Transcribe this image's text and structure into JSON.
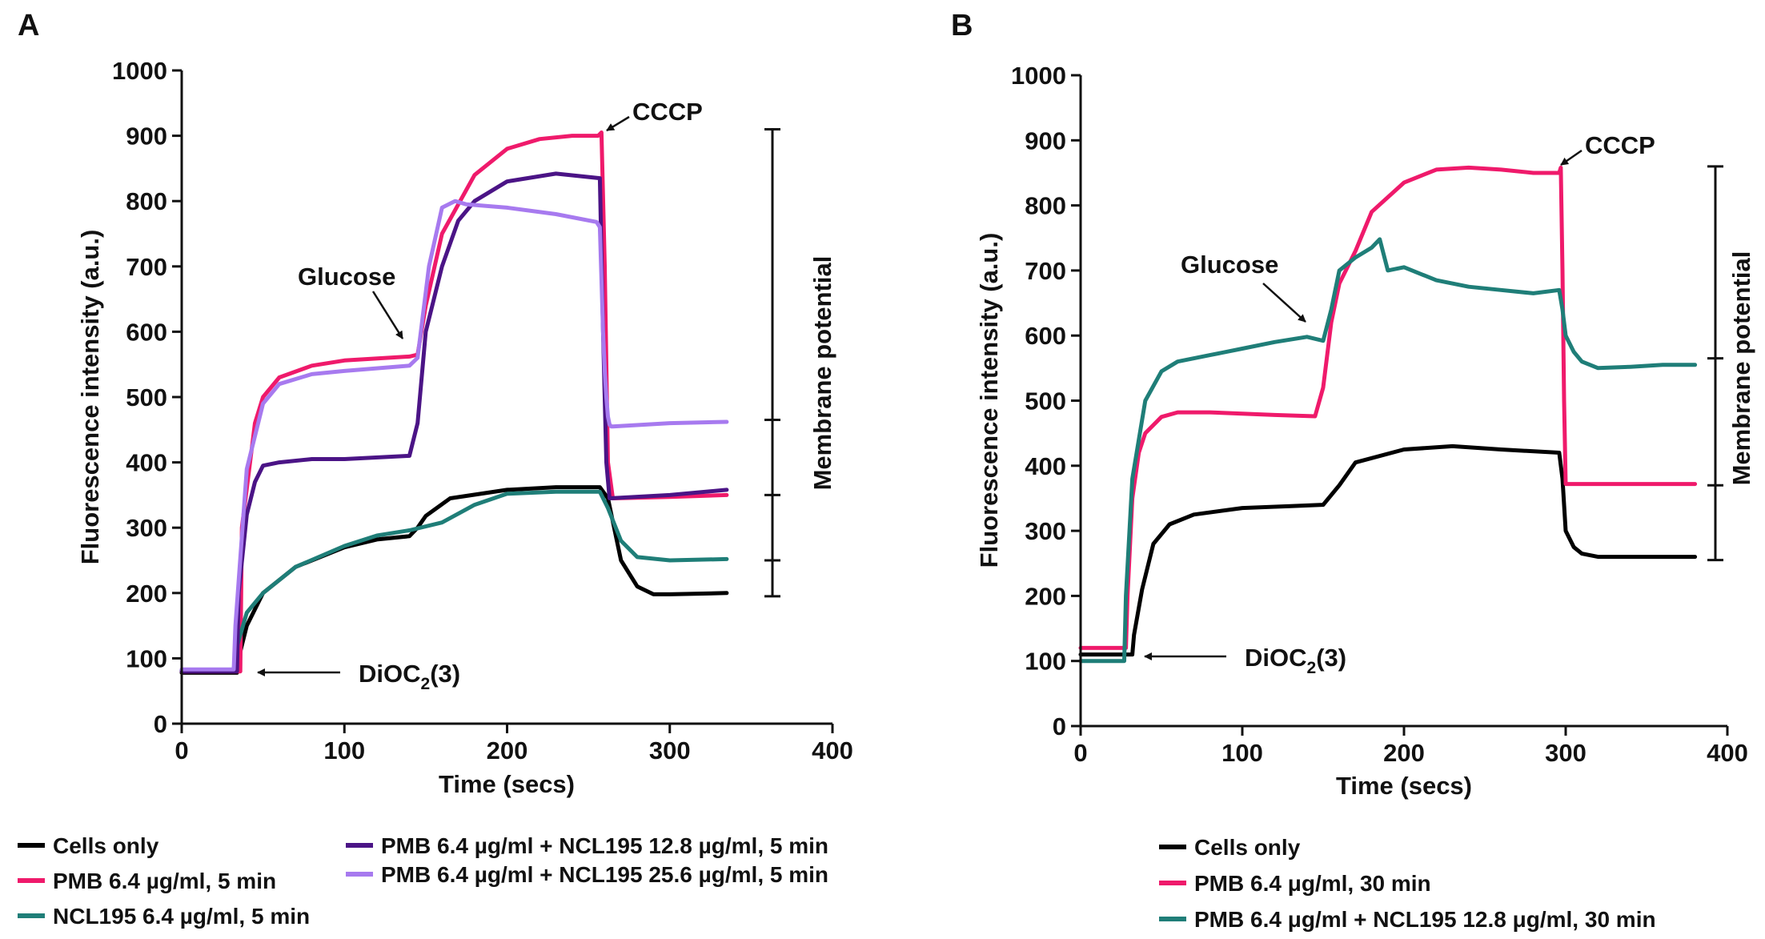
{
  "panels": [
    {
      "label": "A",
      "annotations": {
        "glucose": "Glucose",
        "cccp": "CCCP",
        "dioc_main": "DiOC",
        "dioc_sub": "2",
        "dioc_tail": "(3)",
        "side": "Membrane potential"
      },
      "legend": [
        {
          "label": "Cells only",
          "color": "#000000"
        },
        {
          "label": "PMB 6.4 µg/ml, 5 min",
          "color": "#ef1a6b"
        },
        {
          "label": "NCL195 6.4 µg/ml, 5 min",
          "color": "#1f7e78"
        },
        {
          "label": "PMB 6.4 µg/ml + NCL195 12.8 µg/ml, 5 min",
          "color": "#4b1486"
        },
        {
          "label": "PMB 6.4 µg/ml + NCL195 25.6 µg/ml, 5 min",
          "color": "#a77aef"
        }
      ]
    },
    {
      "label": "B",
      "annotations": {
        "glucose": "Glucose",
        "cccp": "CCCP",
        "dioc_main": "DiOC",
        "dioc_sub": "2",
        "dioc_tail": "(3)",
        "side": "Membrane potential"
      },
      "legend": [
        {
          "label": "Cells only",
          "color": "#000000"
        },
        {
          "label": "PMB 6.4 μg/ml, 30 min",
          "color": "#ef1a6b"
        },
        {
          "label": "PMB 6.4 μg/ml + NCL195 12.8 μg/ml, 30 min",
          "color": "#1f7e78"
        }
      ]
    }
  ],
  "chart_data": [
    {
      "type": "line",
      "title": "",
      "xlabel": "Time (secs)",
      "ylabel": "Fluorescence intensity (a.u.)",
      "xlim": [
        0,
        400
      ],
      "ylim": [
        0,
        1000
      ],
      "xticks": [
        0,
        100,
        200,
        300,
        400
      ],
      "yticks": [
        0,
        100,
        200,
        300,
        400,
        500,
        600,
        700,
        800,
        900,
        1000
      ],
      "bracket_values": [
        910,
        465,
        350,
        250,
        195
      ],
      "series": [
        {
          "name": "Cells only",
          "color": "#000000",
          "x": [
            0,
            34,
            35,
            40,
            50,
            70,
            100,
            120,
            140,
            145,
            150,
            165,
            200,
            230,
            257,
            262,
            270,
            280,
            290,
            300,
            335
          ],
          "y": [
            78,
            78,
            100,
            150,
            200,
            240,
            270,
            282,
            287,
            300,
            318,
            345,
            358,
            362,
            362,
            345,
            250,
            210,
            198,
            198,
            200
          ]
        },
        {
          "name": "PMB 6.4 µg/ml, 5 min",
          "color": "#ef1a6b",
          "x": [
            0,
            36,
            37,
            45,
            50,
            60,
            80,
            100,
            140,
            145,
            150,
            160,
            180,
            200,
            220,
            240,
            256,
            258,
            260,
            262,
            265,
            300,
            335
          ],
          "y": [
            80,
            80,
            300,
            460,
            500,
            530,
            548,
            556,
            562,
            565,
            640,
            750,
            840,
            880,
            895,
            900,
            900,
            905,
            700,
            400,
            345,
            347,
            350
          ]
        },
        {
          "name": "NCL195 6.4 µg/ml, 5 min",
          "color": "#1f7e78",
          "x": [
            0,
            32,
            33,
            40,
            50,
            70,
            100,
            120,
            140,
            160,
            180,
            200,
            230,
            257,
            262,
            270,
            280,
            300,
            335
          ],
          "y": [
            82,
            82,
            110,
            170,
            200,
            240,
            272,
            288,
            296,
            308,
            335,
            352,
            355,
            355,
            330,
            280,
            255,
            250,
            252
          ]
        },
        {
          "name": "PMB 6.4 µg/ml + NCL195 12.8 µg/ml, 5 min",
          "color": "#4b1486",
          "x": [
            0,
            34,
            35,
            40,
            45,
            50,
            60,
            80,
            100,
            140,
            145,
            150,
            160,
            170,
            180,
            200,
            230,
            257,
            259,
            261,
            263,
            300,
            335
          ],
          "y": [
            80,
            80,
            200,
            320,
            370,
            395,
            400,
            405,
            405,
            410,
            460,
            600,
            700,
            770,
            800,
            830,
            842,
            835,
            600,
            400,
            345,
            350,
            358
          ]
        },
        {
          "name": "PMB 6.4 µg/ml + NCL195 25.6 µg/ml, 5 min",
          "color": "#a77aef",
          "x": [
            0,
            32,
            33,
            40,
            50,
            60,
            80,
            100,
            140,
            145,
            152,
            160,
            168,
            175,
            200,
            230,
            255,
            257,
            258,
            259,
            260,
            261,
            262,
            263,
            264,
            265,
            300,
            335
          ],
          "y": [
            83,
            83,
            150,
            390,
            490,
            520,
            535,
            540,
            548,
            560,
            700,
            790,
            800,
            795,
            790,
            780,
            768,
            760,
            680,
            600,
            540,
            500,
            470,
            458,
            455,
            455,
            460,
            462
          ]
        }
      ]
    },
    {
      "type": "line",
      "title": "",
      "xlabel": "Time (secs)",
      "ylabel": "Fluorescence intensity (a.u.)",
      "xlim": [
        0,
        400
      ],
      "ylim": [
        0,
        1000
      ],
      "xticks": [
        0,
        100,
        200,
        300,
        400
      ],
      "yticks": [
        0,
        100,
        200,
        300,
        400,
        500,
        600,
        700,
        800,
        900,
        1000
      ],
      "bracket_values": [
        860,
        565,
        370,
        255
      ],
      "series": [
        {
          "name": "Cells only",
          "color": "#000000",
          "x": [
            0,
            32,
            33,
            38,
            45,
            55,
            70,
            100,
            130,
            150,
            160,
            170,
            200,
            230,
            260,
            296,
            298,
            300,
            305,
            310,
            320,
            350,
            380
          ],
          "y": [
            110,
            110,
            140,
            210,
            280,
            310,
            325,
            335,
            338,
            340,
            370,
            405,
            425,
            430,
            425,
            420,
            380,
            300,
            275,
            265,
            260,
            260,
            260
          ]
        },
        {
          "name": "PMB 6.4 μg/ml, 30 min",
          "color": "#ef1a6b",
          "x": [
            0,
            28,
            29,
            32,
            36,
            40,
            50,
            60,
            80,
            100,
            120,
            145,
            150,
            155,
            160,
            170,
            180,
            200,
            220,
            240,
            260,
            280,
            296,
            297,
            298,
            299,
            300,
            380
          ],
          "y": [
            120,
            120,
            200,
            350,
            420,
            450,
            475,
            482,
            482,
            480,
            478,
            476,
            520,
            620,
            680,
            730,
            790,
            835,
            855,
            858,
            855,
            850,
            850,
            858,
            700,
            500,
            372,
            372
          ]
        },
        {
          "name": "PMB 6.4 μg/ml + NCL195 12.8 μg/ml, 30 min",
          "color": "#1f7e78",
          "x": [
            0,
            27,
            28,
            32,
            40,
            50,
            60,
            80,
            100,
            120,
            140,
            150,
            155,
            160,
            170,
            180,
            185,
            190,
            200,
            220,
            240,
            260,
            280,
            296,
            298,
            300,
            305,
            310,
            320,
            340,
            360,
            380
          ],
          "y": [
            100,
            100,
            200,
            380,
            500,
            545,
            560,
            570,
            580,
            590,
            598,
            592,
            640,
            700,
            720,
            735,
            748,
            700,
            705,
            685,
            675,
            670,
            665,
            670,
            640,
            600,
            575,
            560,
            550,
            552,
            555,
            555
          ]
        }
      ]
    }
  ]
}
